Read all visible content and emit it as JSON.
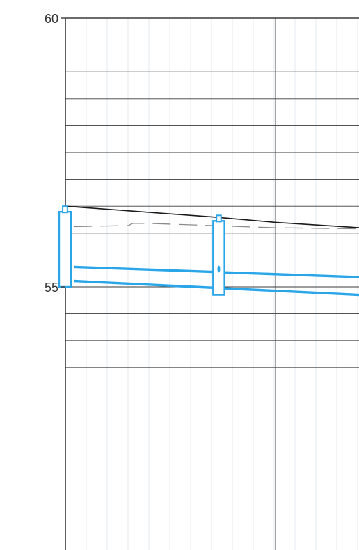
{
  "colors": {
    "background": "#ffffff",
    "grid_major": "#3a3a3a",
    "grid_minor": "#e6ebef",
    "ground_line": "#1a1a1a",
    "dashed_line": "#8a8a8a",
    "pipe": "#2aa6e8"
  },
  "chart_data": {
    "type": "line",
    "title": "",
    "xlabel": "",
    "ylabel": "",
    "ylim": [
      53.1,
      60
    ],
    "yticks_labeled": [
      {
        "value": 60,
        "label": "60"
      },
      {
        "value": 55,
        "label": "55"
      }
    ],
    "y_grid_step": 0.5,
    "x_grid": [
      0,
      0.5
    ],
    "xlim": [
      0,
      0.7
    ],
    "grid": true,
    "series": [
      {
        "style": "solid-black",
        "points": [
          [
            0,
            56.5
          ],
          [
            0.35,
            56.3
          ],
          [
            0.5,
            56.2
          ],
          [
            0.7,
            56.1
          ]
        ]
      },
      {
        "style": "dashed-gray",
        "points": [
          [
            0.02,
            56.12
          ],
          [
            0.15,
            56.14
          ],
          [
            0.16,
            56.18
          ],
          [
            0.2,
            56.18
          ],
          [
            0.35,
            56.14
          ],
          [
            0.5,
            56.1
          ],
          [
            0.7,
            56.08
          ]
        ]
      },
      {
        "style": "pipe-top",
        "points": [
          [
            0.02,
            55.37
          ],
          [
            0.7,
            55.18
          ]
        ]
      },
      {
        "style": "pipe-bottom",
        "points": [
          [
            0.02,
            55.11
          ],
          [
            0.7,
            54.85
          ]
        ]
      }
    ],
    "manholes": [
      {
        "x": 0.0,
        "top": 56.5,
        "bottom": 55.0,
        "width": 0.028
      },
      {
        "x": 0.365,
        "top": 56.33,
        "bottom": 54.85,
        "width": 0.027
      }
    ]
  }
}
